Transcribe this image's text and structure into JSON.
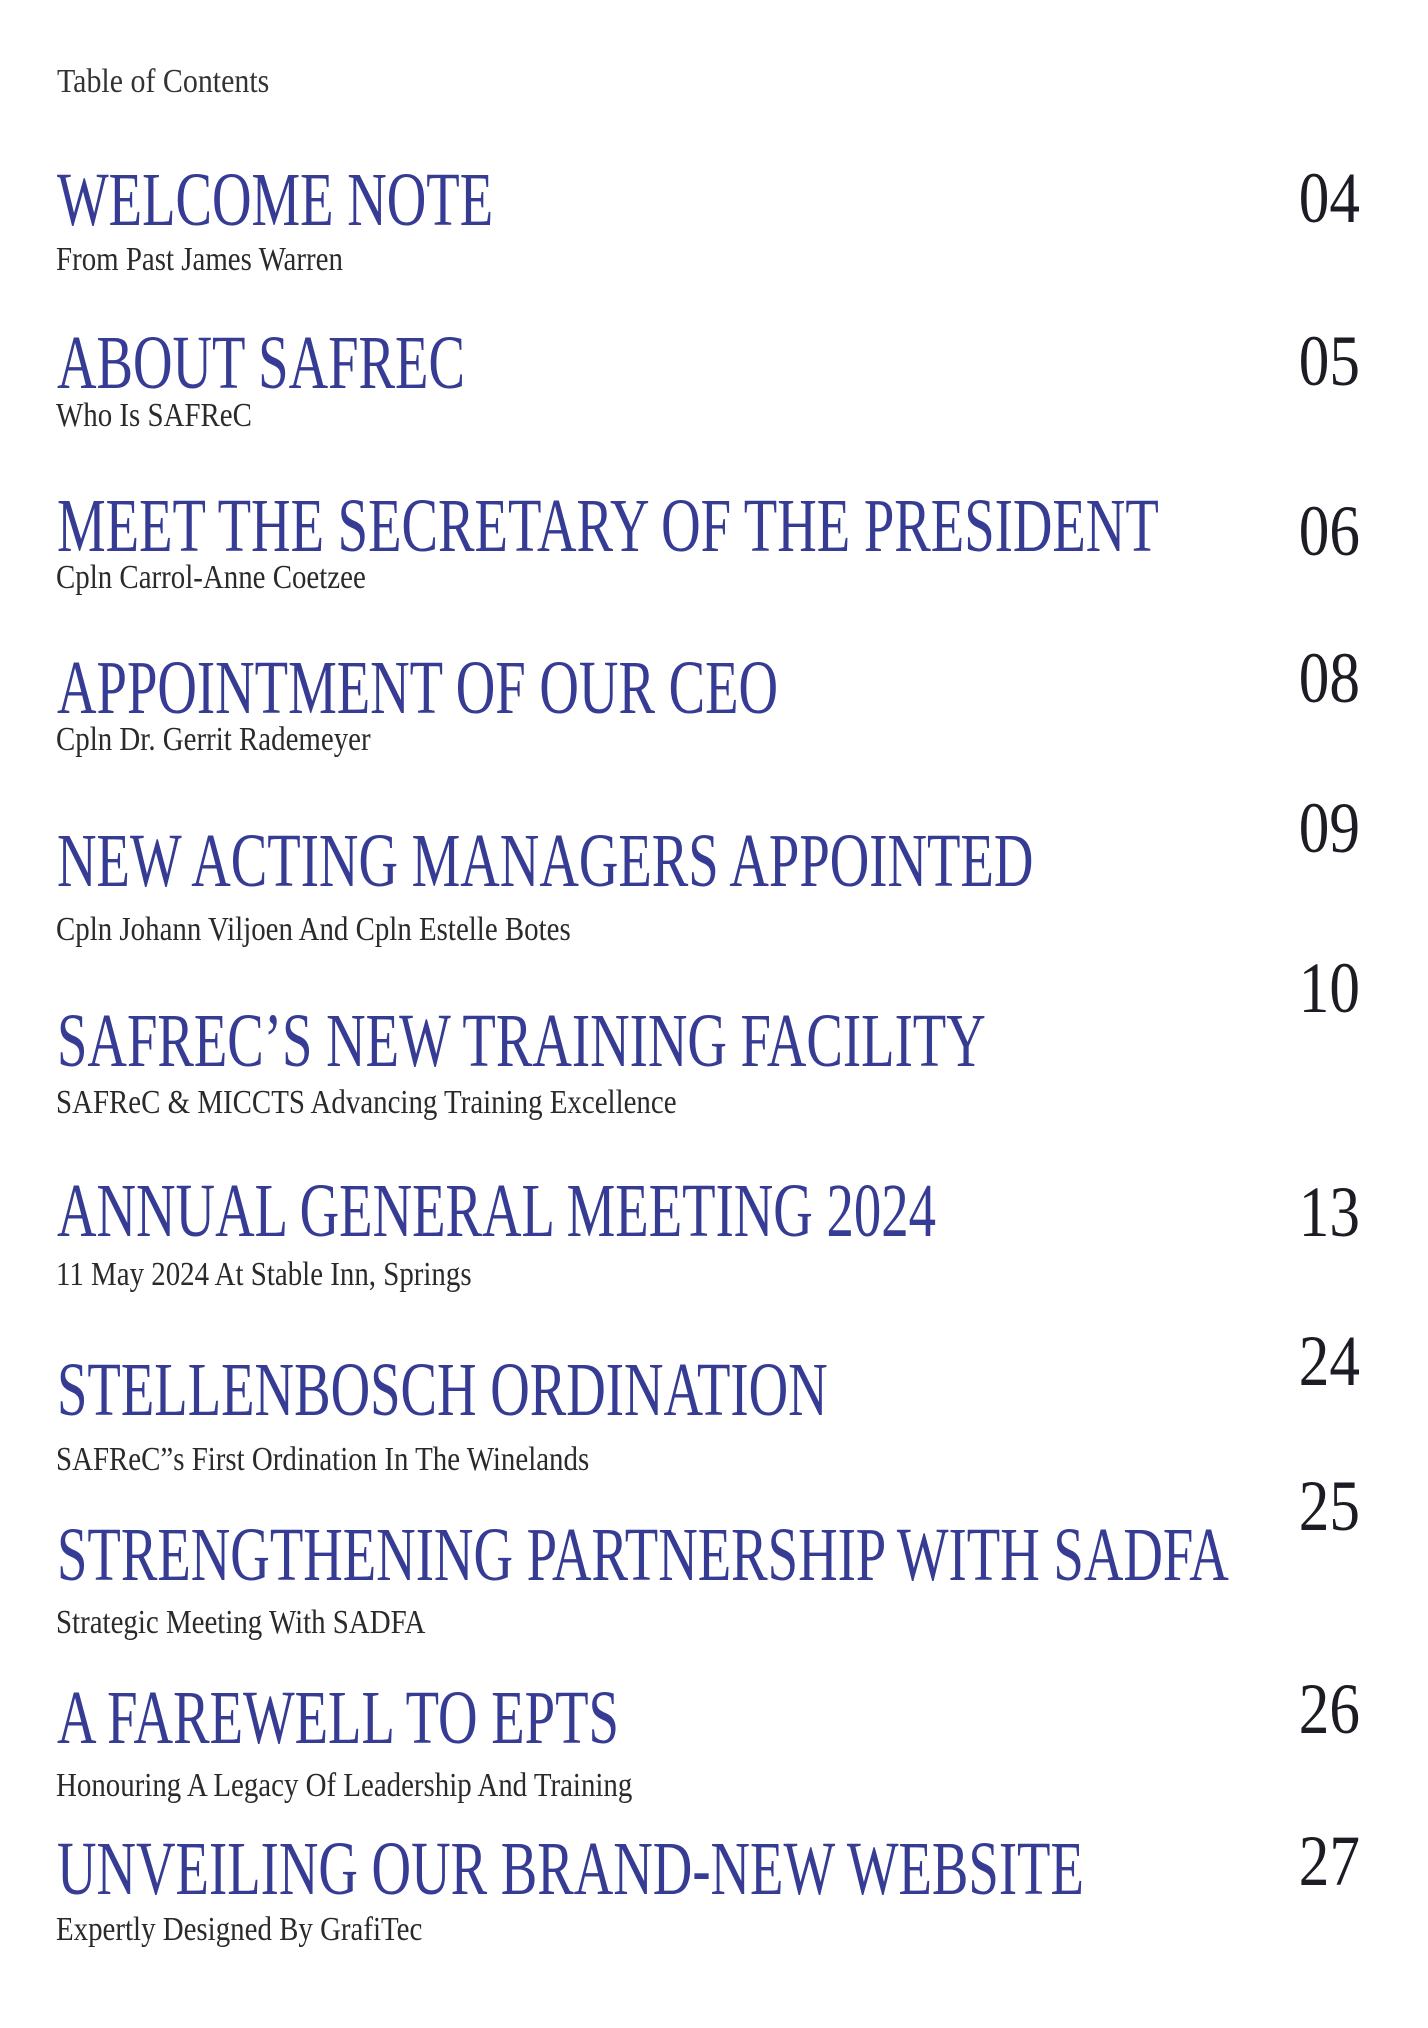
{
  "page": {
    "title": "Table of Contents"
  },
  "colors": {
    "heading_blue": "#363c93",
    "page_number_dark": "#1c1c24",
    "subtitle_dark": "#2a2a2a",
    "background": "#ffffff"
  },
  "toc": {
    "entries": [
      {
        "title": "WELCOME NOTE",
        "subtitle": "From Past James Warren",
        "page": "04"
      },
      {
        "title": "ABOUT SAFREC",
        "subtitle": "Who Is SAFReC",
        "page": "05"
      },
      {
        "title": "MEET THE SECRETARY OF THE PRESIDENT",
        "subtitle": "Cpln Carrol-Anne Coetzee",
        "page": "06"
      },
      {
        "title": "APPOINTMENT OF OUR CEO",
        "subtitle": "Cpln Dr. Gerrit Rademeyer",
        "page": "08"
      },
      {
        "title": "NEW ACTING MANAGERS APPOINTED",
        "subtitle": "Cpln Johann Viljoen And Cpln Estelle Botes",
        "page": "09"
      },
      {
        "title": "SAFREC’S NEW TRAINING FACILITY",
        "subtitle": "SAFReC & MICCTS Advancing Training Excellence",
        "page": "10"
      },
      {
        "title": "ANNUAL GENERAL MEETING 2024",
        "subtitle": "11 May 2024 At Stable Inn, Springs",
        "page": "13"
      },
      {
        "title": "STELLENBOSCH ORDINATION",
        "subtitle": "SAFReC”s First Ordination In The Winelands",
        "page": "24"
      },
      {
        "title": "STRENGTHENING PARTNERSHIP WITH SADFA",
        "subtitle": "Strategic Meeting With SADFA",
        "page": "25"
      },
      {
        "title": "A FAREWELL TO EPTS",
        "subtitle": "Honouring A Legacy Of Leadership And Training",
        "page": "26"
      },
      {
        "title": "UNVEILING OUR BRAND-NEW WEBSITE",
        "subtitle": "Expertly Designed By GrafiTec",
        "page": "27"
      }
    ]
  }
}
